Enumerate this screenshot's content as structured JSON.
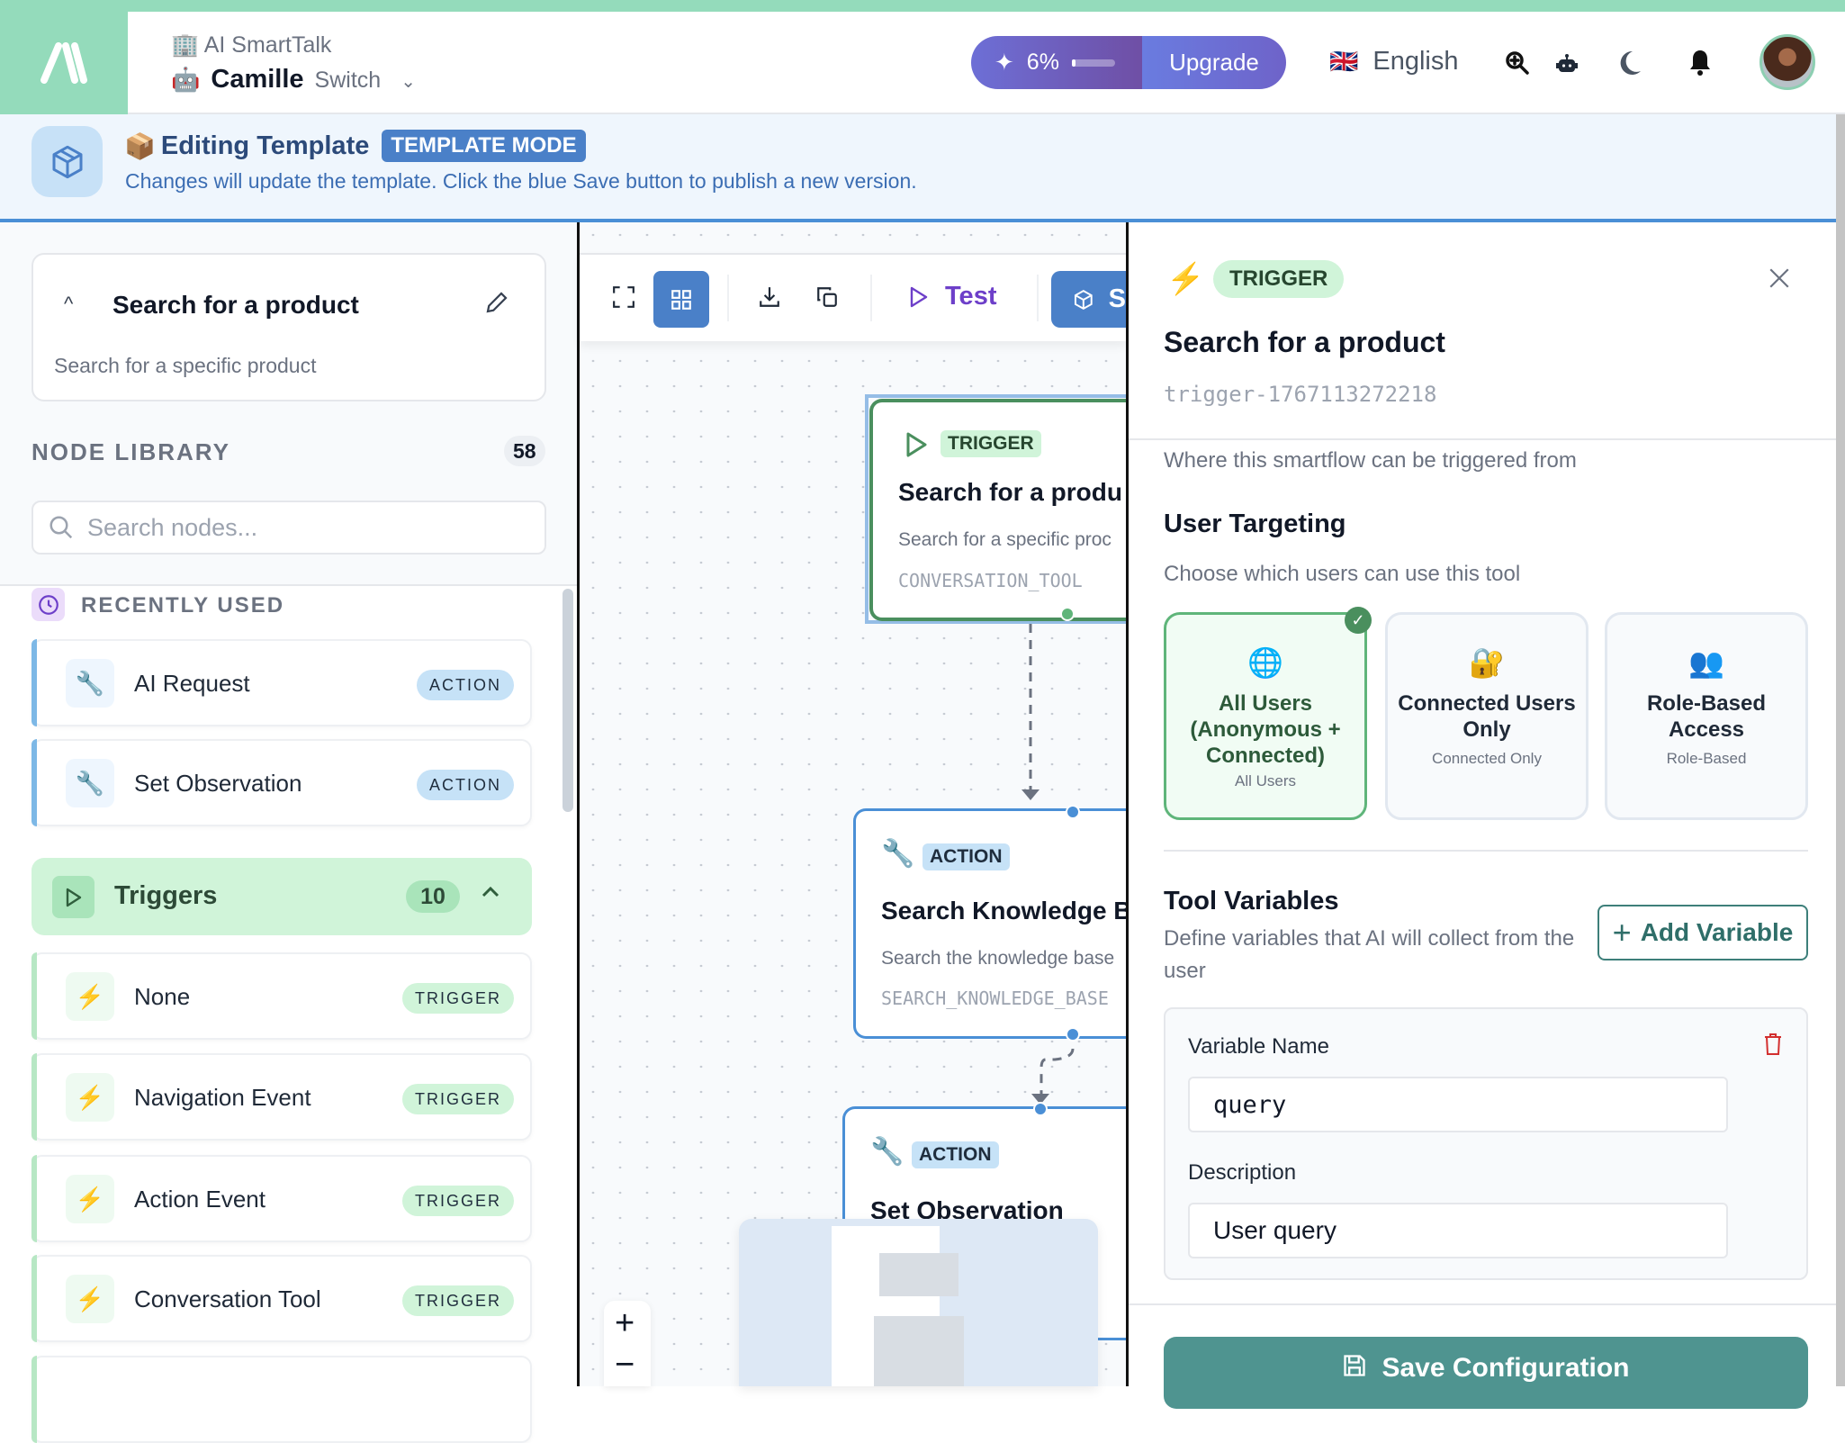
{
  "header": {
    "org_name": "AI SmartTalk",
    "agent_name": "Camille",
    "switch_label": "Switch",
    "usage_percent": "6%",
    "usage_fraction": 0.06,
    "upgrade_label": "Upgrade",
    "language": "English",
    "icons": [
      "zoom-in-icon",
      "robot-icon",
      "moon-icon",
      "bell-icon"
    ]
  },
  "banner": {
    "title": "Editing Template",
    "badge": "TEMPLATE MODE",
    "message": "Changes will update the template. Click the blue Save button to publish a new version."
  },
  "sidebar": {
    "flow_title": "Search for a product",
    "flow_description": "Search for a specific product",
    "library_title": "NODE LIBRARY",
    "library_count": "58",
    "search_placeholder": "Search nodes...",
    "recent_title": "RECENTLY USED",
    "recent": [
      {
        "label": "AI Request",
        "tag": "ACTION"
      },
      {
        "label": "Set Observation",
        "tag": "ACTION"
      }
    ],
    "group": {
      "label": "Triggers",
      "count": "10"
    },
    "triggers": [
      {
        "label": "None",
        "tag": "TRIGGER"
      },
      {
        "label": "Navigation Event",
        "tag": "TRIGGER"
      },
      {
        "label": "Action Event",
        "tag": "TRIGGER"
      },
      {
        "label": "Conversation Tool",
        "tag": "TRIGGER"
      }
    ]
  },
  "canvas": {
    "toolbar": {
      "test_label": "Test",
      "save_label": "S"
    },
    "nodes": [
      {
        "badge": "TRIGGER",
        "title": "Search for a produ",
        "desc": "Search for a specific proc",
        "code": "CONVERSATION_TOOL"
      },
      {
        "badge": "ACTION",
        "title": "Search Knowledge B",
        "desc": "Search the knowledge base",
        "code": "SEARCH_KNOWLEDGE_BASE"
      },
      {
        "badge": "ACTION",
        "title": "Set Observation"
      }
    ],
    "zoom": {
      "in": "+",
      "out": "−"
    }
  },
  "panel": {
    "badge": "TRIGGER",
    "title": "Search for a product",
    "node_id": "trigger-1767113272218",
    "trigger_hint": "Where this smartflow can be triggered from",
    "targeting_title": "User Targeting",
    "targeting_desc": "Choose which users can use this tool",
    "options": [
      {
        "emoji": "🌐",
        "title": "All Users (Anonymous + Connected)",
        "sub": "All Users",
        "selected": true
      },
      {
        "emoji": "🔐",
        "title": "Connected Users Only",
        "sub": "Connected Only",
        "selected": false
      },
      {
        "emoji": "👥",
        "title": "Role-Based Access",
        "sub": "Role-Based",
        "selected": false
      }
    ],
    "vars_title": "Tool Variables",
    "vars_desc": "Define variables that AI will collect from the user",
    "add_variable": "Add Variable",
    "var_name_label": "Variable Name",
    "var_name_value": "query",
    "var_desc_label": "Description",
    "var_desc_value": "User query",
    "save_label": "Save Configuration"
  },
  "colors": {
    "brand_green": "#94dbbb",
    "template_blue": "#4a80c8",
    "trigger_green": "#4a8f5e",
    "save_teal": "#4f9490",
    "upgrade_purple": "#6e63c9"
  }
}
